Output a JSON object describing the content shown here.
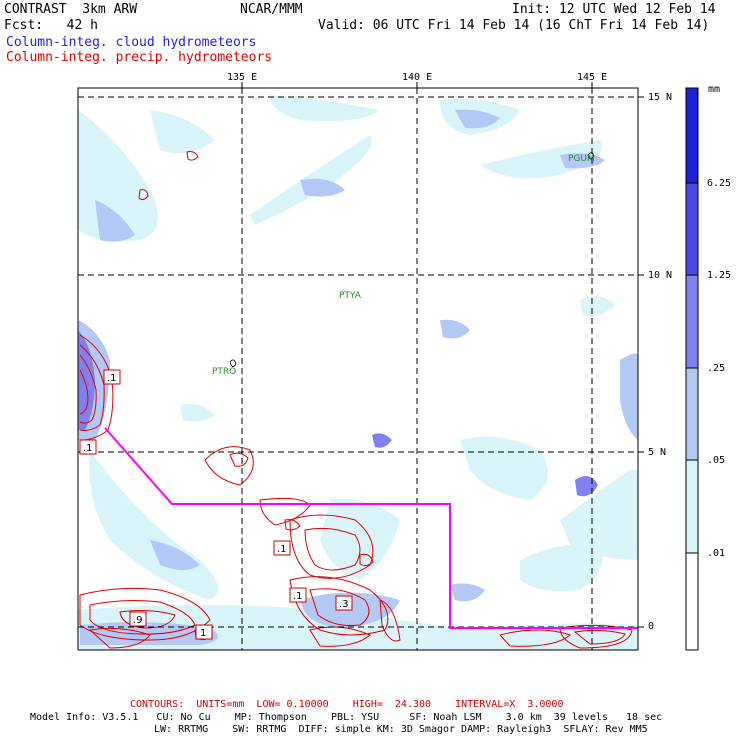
{
  "header": {
    "title": "CONTRAST  3km ARW",
    "org": "NCAR/MMM",
    "init": "Init: 12 UTC Wed 12 Feb 14",
    "fcst": "Fcst:   42 h",
    "valid": "Valid: 06 UTC Fri 14 Feb 14 (16 ChT Fri 14 Feb 14)",
    "field_cloud": "Column-integ. cloud hydrometeors",
    "field_precip": "Column-integ. precip. hydrometeors"
  },
  "map": {
    "lon_labels": [
      "135 E",
      "140 E",
      "145 E"
    ],
    "lat_labels": [
      "15 N",
      "10 N",
      "5 N",
      "0"
    ],
    "stations": [
      "PGUM",
      "PTYA",
      "PTRO"
    ],
    "contour_labels": [
      ".1",
      ".1",
      ".1",
      ".1",
      ".3",
      ".9",
      "1"
    ]
  },
  "legend": {
    "unit": "mm",
    "levels": [
      "6.25",
      "1.25",
      ".25",
      ".05",
      ".01"
    ],
    "colors": [
      "#2020d8",
      "#4a4ae8",
      "#8080ee",
      "#b4c8f5",
      "#d8f4f9",
      "#ffffff"
    ]
  },
  "footer": {
    "contours": "CONTOURS:  UNITS=mm  LOW= 0.10000    HIGH=  24.300    INTERVAL=X  3.0000",
    "model_line1": "Model Info: V3.5.1   CU: No Cu    MP: Thompson    PBL: YSU     SF: Noah LSM    3.0 km  39 levels   18 sec",
    "model_line2": "LW: RRTMG    SW: RRTMG  DIFF: simple KM: 3D Smagor DAMP: Rayleigh3  SFLAY: Rev MM5"
  }
}
